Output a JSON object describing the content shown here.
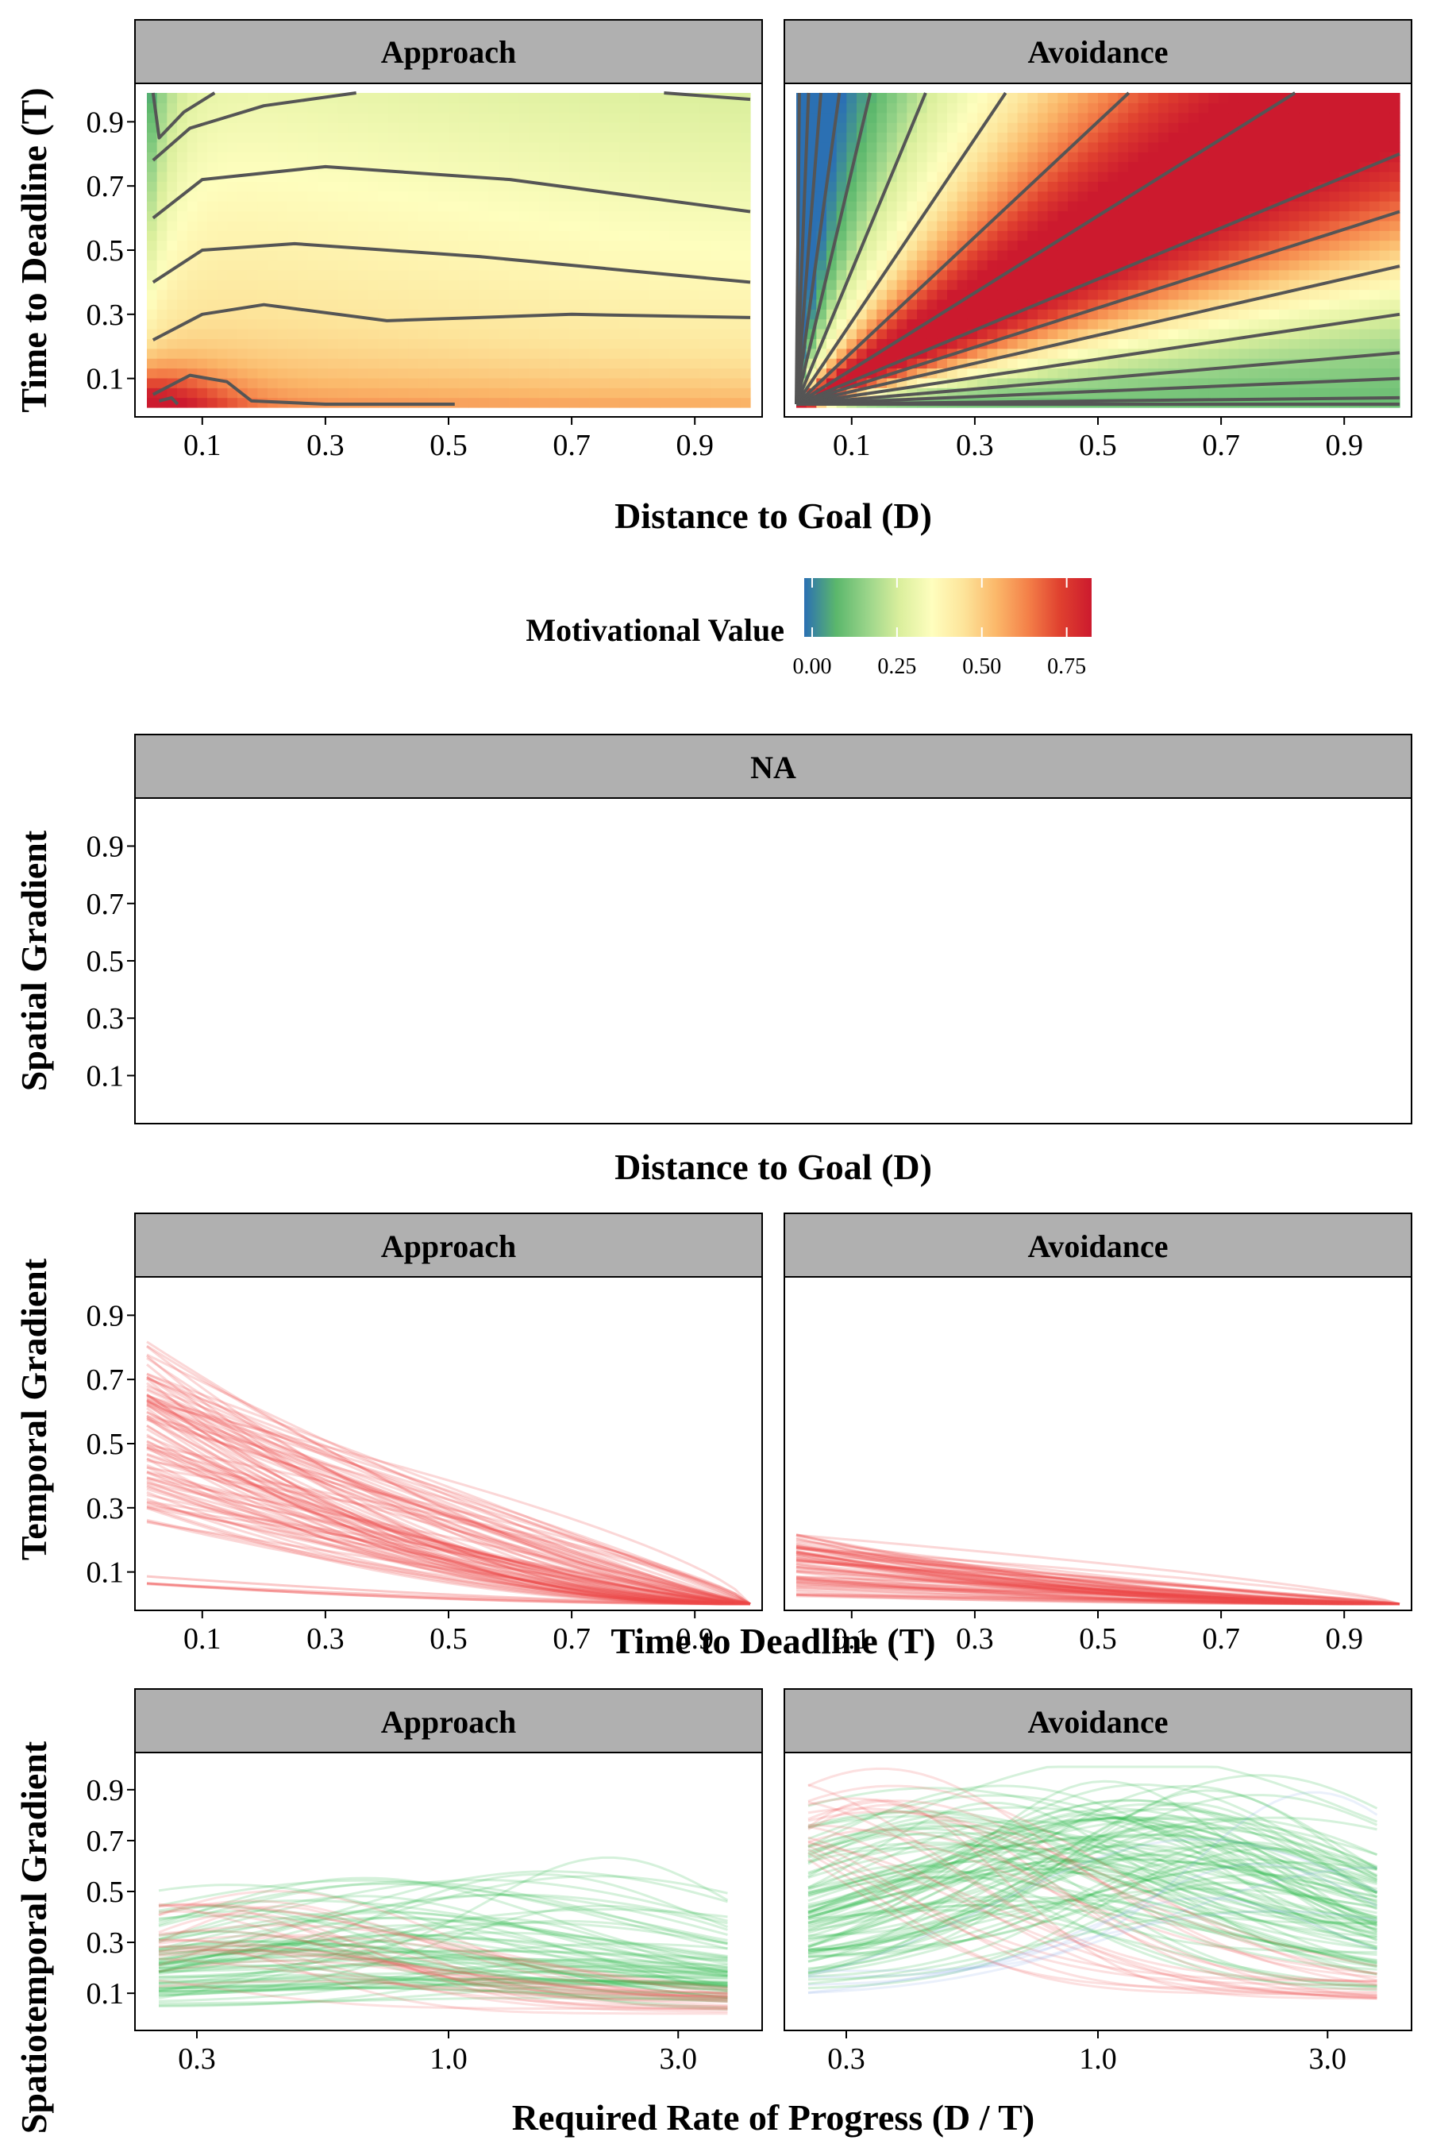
{
  "colors": {
    "strip_fill": "#b0b0b0",
    "panel_border": "#000000",
    "contour": "#555555",
    "temporal_line": "#ef4a4a",
    "spatiotemporal_green": "#2db84a",
    "spatiotemporal_red": "#ee5555",
    "spatiotemporal_blue": "#6f9be6",
    "colorscale": [
      "#2b70b3",
      "#5bb76c",
      "#9bd58a",
      "#dbef9d",
      "#fefebe",
      "#fde49a",
      "#fbb86a",
      "#f48149",
      "#e0412f",
      "#cc1a2e"
    ]
  },
  "legend": {
    "title": "Motivational Value",
    "ticks": [
      "0.00",
      "0.25",
      "0.50",
      "0.75"
    ]
  },
  "chart_data": [
    {
      "id": "motivational-value-heatmap",
      "type": "heatmap",
      "xlabel": "Distance to Goal (D)",
      "ylabel": "Time to Deadline (T)",
      "xlim": [
        0,
        1
      ],
      "ylim": [
        0,
        1
      ],
      "x_ticks": [
        "0.1",
        "0.3",
        "0.5",
        "0.7",
        "0.9"
      ],
      "y_ticks": [
        "0.1",
        "0.3",
        "0.5",
        "0.7",
        "0.9"
      ],
      "facets": [
        "Approach",
        "Avoidance"
      ],
      "value_range": [
        0,
        0.8
      ]
    },
    {
      "id": "spatial-gradient",
      "type": "line",
      "facets": [
        "NA"
      ],
      "xlabel": "Distance to Goal (D)",
      "ylabel": "Spatial Gradient",
      "x_ticks": [],
      "y_ticks": [
        "0.1",
        "0.3",
        "0.5",
        "0.7",
        "0.9"
      ],
      "series": []
    },
    {
      "id": "temporal-gradient",
      "type": "line",
      "facets": [
        "Approach",
        "Avoidance"
      ],
      "xlabel": "Time to Deadline (T)",
      "ylabel": "Temporal Gradient",
      "xlim": [
        0,
        1
      ],
      "ylim": [
        0,
        1
      ],
      "x_ticks": [
        "0.1",
        "0.3",
        "0.5",
        "0.7",
        "0.9"
      ],
      "y_ticks": [
        "0.1",
        "0.3",
        "0.5",
        "0.7",
        "0.9"
      ],
      "start_range": {
        "Approach": [
          0.05,
          0.82
        ],
        "Avoidance": [
          0.02,
          0.22
        ]
      },
      "end_value": 0.0
    },
    {
      "id": "spatiotemporal-gradient",
      "type": "line",
      "facets": [
        "Approach",
        "Avoidance"
      ],
      "xlabel": "Required Rate of Progress (D / T)",
      "ylabel": "Spatiotemporal Gradient",
      "x_scale": "log10",
      "xlim": [
        0.25,
        4.0
      ],
      "ylim": [
        0,
        1
      ],
      "x_ticks": [
        "0.3",
        "1.0",
        "3.0"
      ],
      "y_ticks": [
        "0.1",
        "0.3",
        "0.5",
        "0.7",
        "0.9"
      ]
    }
  ]
}
